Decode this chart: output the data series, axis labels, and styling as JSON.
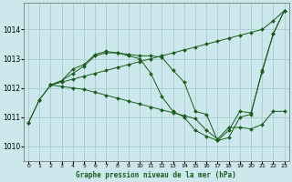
{
  "title": "Graphe pression niveau de la mer (hPa)",
  "background_color": "#cde8ec",
  "grid_color": "#a8cccc",
  "line_color": "#1a5c1a",
  "text_color": "#1a5c1a",
  "x_ticks": [
    0,
    1,
    2,
    3,
    4,
    5,
    6,
    7,
    8,
    9,
    10,
    11,
    12,
    13,
    14,
    15,
    16,
    17,
    18,
    19,
    20,
    21,
    22,
    23
  ],
  "y_ticks": [
    1010,
    1011,
    1012,
    1013,
    1014
  ],
  "ylim": [
    1009.5,
    1014.9
  ],
  "xlim": [
    -0.4,
    23.4
  ],
  "series": [
    {
      "x": [
        0,
        1,
        2,
        3,
        4,
        5,
        6,
        7,
        8,
        9,
        10,
        11,
        12,
        13,
        14,
        15,
        16,
        17,
        18,
        19,
        20,
        21,
        22,
        23
      ],
      "y": [
        1010.8,
        1011.6,
        1012.1,
        1012.25,
        1012.65,
        1012.8,
        1013.15,
        1013.25,
        1013.2,
        1013.15,
        1013.1,
        1013.1,
        1013.05,
        1012.6,
        1012.2,
        1011.2,
        1011.1,
        1010.2,
        1010.3,
        1011.0,
        1011.1,
        1012.6,
        1013.85,
        1014.65
      ]
    },
    {
      "x": [
        0,
        1,
        2,
        3,
        4,
        5,
        6,
        7,
        8,
        9,
        10,
        11,
        12,
        13,
        14,
        15,
        16,
        17,
        18,
        19,
        20,
        21,
        22,
        23
      ],
      "y": [
        1010.8,
        1011.6,
        1012.1,
        1012.25,
        1012.5,
        1012.75,
        1013.1,
        1013.2,
        1013.2,
        1013.1,
        1013.0,
        1012.5,
        1011.7,
        1011.2,
        1011.0,
        1010.55,
        1010.35,
        1010.2,
        1010.55,
        1011.2,
        1011.15,
        1012.55,
        1013.85,
        1014.65
      ]
    },
    {
      "x": [
        2,
        3,
        4,
        5,
        6,
        7,
        8,
        9,
        10,
        11,
        12,
        13,
        14,
        15,
        16,
        17,
        18,
        19,
        20,
        21,
        22,
        23
      ],
      "y": [
        1012.1,
        1012.2,
        1012.3,
        1012.4,
        1012.5,
        1012.6,
        1012.7,
        1012.8,
        1012.9,
        1013.0,
        1013.1,
        1013.2,
        1013.3,
        1013.4,
        1013.5,
        1013.6,
        1013.7,
        1013.8,
        1013.9,
        1014.0,
        1014.3,
        1014.65
      ]
    },
    {
      "x": [
        2,
        3,
        4,
        5,
        6,
        7,
        8,
        9,
        10,
        11,
        12,
        13,
        14,
        15,
        16,
        17,
        18,
        19,
        20,
        21,
        22,
        23
      ],
      "y": [
        1012.1,
        1012.05,
        1012.0,
        1011.95,
        1011.85,
        1011.75,
        1011.65,
        1011.55,
        1011.45,
        1011.35,
        1011.25,
        1011.15,
        1011.05,
        1010.95,
        1010.55,
        1010.25,
        1010.65,
        1010.65,
        1010.6,
        1010.75,
        1011.2,
        1011.2
      ]
    }
  ]
}
